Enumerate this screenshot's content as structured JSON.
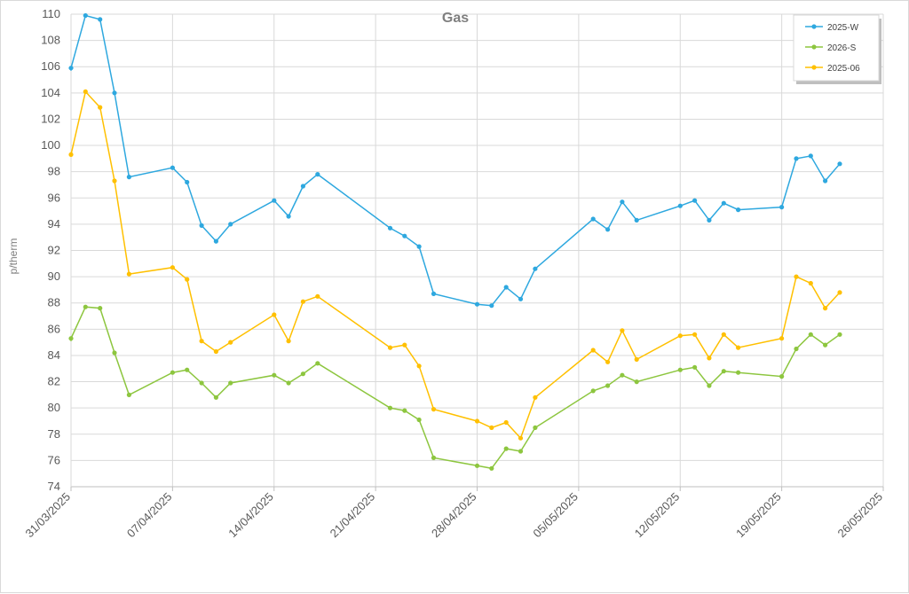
{
  "chart_data": {
    "type": "line",
    "title": "Gas",
    "ylabel": "p/therm",
    "xlabel": "",
    "ylim": [
      74,
      110
    ],
    "yticks": [
      74,
      76,
      78,
      80,
      82,
      84,
      86,
      88,
      90,
      92,
      94,
      96,
      98,
      100,
      102,
      104,
      106,
      108,
      110
    ],
    "xlim": [
      "2025-03-31",
      "2025-05-26"
    ],
    "xticks": [
      "31/03/2025",
      "07/04/2025",
      "14/04/2025",
      "21/04/2025",
      "28/04/2025",
      "05/05/2025",
      "12/05/2025",
      "19/05/2025",
      "26/05/2025"
    ],
    "x_tick_dates": [
      "2025-03-31",
      "2025-04-07",
      "2025-04-14",
      "2025-04-21",
      "2025-04-28",
      "2025-05-05",
      "2025-05-12",
      "2025-05-19",
      "2025-05-26"
    ],
    "grid": true,
    "legend_position": "top-right",
    "x": [
      "2025-03-31",
      "2025-04-01",
      "2025-04-02",
      "2025-04-03",
      "2025-04-04",
      "2025-04-07",
      "2025-04-08",
      "2025-04-09",
      "2025-04-10",
      "2025-04-11",
      "2025-04-14",
      "2025-04-15",
      "2025-04-16",
      "2025-04-17",
      "2025-04-22",
      "2025-04-23",
      "2025-04-24",
      "2025-04-25",
      "2025-04-28",
      "2025-04-29",
      "2025-04-30",
      "2025-05-01",
      "2025-05-02",
      "2025-05-06",
      "2025-05-07",
      "2025-05-08",
      "2025-05-09",
      "2025-05-12",
      "2025-05-13",
      "2025-05-14",
      "2025-05-15",
      "2025-05-16",
      "2025-05-19",
      "2025-05-20",
      "2025-05-21",
      "2025-05-22",
      "2025-05-23"
    ],
    "series": [
      {
        "name": "2025-W",
        "color": "#2ea8df",
        "start_value": 105.7,
        "values": [
          105.9,
          109.9,
          109.6,
          104.0,
          97.6,
          98.3,
          97.2,
          93.9,
          92.7,
          94.0,
          95.8,
          94.6,
          96.9,
          97.8,
          93.7,
          93.1,
          92.3,
          88.7,
          87.9,
          87.8,
          89.2,
          88.3,
          90.6,
          94.4,
          93.6,
          95.7,
          94.3,
          95.4,
          95.8,
          94.3,
          95.6,
          95.1,
          95.3,
          99.0,
          99.2,
          97.3,
          98.6
        ]
      },
      {
        "name": "2026-S",
        "color": "#8dc63f",
        "start_value": 85.1,
        "values": [
          85.3,
          87.7,
          87.6,
          84.2,
          81.0,
          82.7,
          82.9,
          81.9,
          80.8,
          81.9,
          82.5,
          81.9,
          82.6,
          83.4,
          80.0,
          79.8,
          79.1,
          76.2,
          75.6,
          75.4,
          76.9,
          76.7,
          78.5,
          81.3,
          81.7,
          82.5,
          82.0,
          82.9,
          83.1,
          81.7,
          82.8,
          82.7,
          82.4,
          84.5,
          85.6,
          84.8,
          85.6
        ]
      },
      {
        "name": "2025-06",
        "color": "#ffc000",
        "start_value": 99.5,
        "values": [
          99.3,
          104.1,
          102.9,
          97.3,
          90.2,
          90.7,
          89.8,
          85.1,
          84.3,
          85.0,
          87.1,
          85.1,
          88.1,
          88.5,
          84.6,
          84.8,
          83.2,
          79.9,
          79.0,
          78.5,
          78.9,
          77.7,
          80.8,
          84.4,
          83.5,
          85.9,
          83.7,
          85.5,
          85.6,
          83.8,
          85.6,
          84.6,
          85.3,
          90.0,
          89.5,
          87.6,
          88.8
        ]
      }
    ]
  }
}
